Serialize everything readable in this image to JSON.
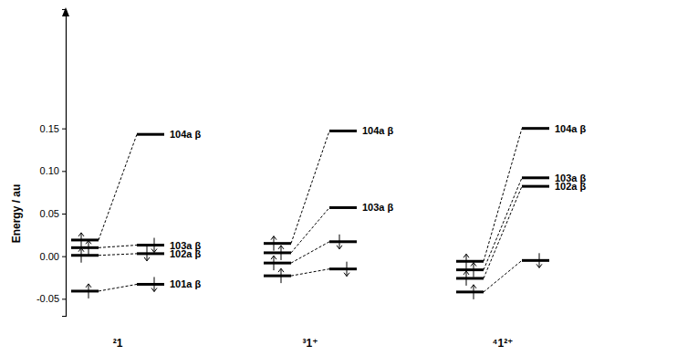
{
  "chart_data": {
    "type": "energy_level",
    "y_label": "Energy / au",
    "ylim": [
      -0.07,
      0.29
    ],
    "yticks": [
      -0.05,
      {
        "value": 0,
        "label": "0.00"
      },
      0.05,
      {
        "value": 0.1,
        "label": "0.10"
      },
      0.15
    ],
    "series": [
      {
        "name": "²1",
        "alpha": [
          0.019,
          0.01,
          0.001,
          -0.041
        ],
        "beta": [
          0.143,
          0.013,
          0.003,
          -0.033
        ],
        "beta_occupied": [
          false,
          true,
          true,
          true
        ],
        "beta_labels": [
          "104a β",
          "103a β",
          "102a β",
          "101a β"
        ]
      },
      {
        "name": "³1⁺",
        "alpha": [
          0.015,
          0.004,
          -0.008,
          -0.023
        ],
        "beta": [
          0.147,
          0.057,
          0.017,
          -0.015
        ],
        "beta_occupied": [
          false,
          false,
          true,
          true
        ],
        "beta_labels": [
          "104a β",
          "103a β",
          null,
          null
        ]
      },
      {
        "name": "⁴1²⁺",
        "alpha": [
          -0.006,
          -0.016,
          -0.026,
          -0.042
        ],
        "beta": [
          0.15,
          0.092,
          0.082,
          -0.005
        ],
        "beta_occupied": [
          false,
          false,
          false,
          true
        ],
        "beta_labels": [
          "104a β",
          "103a β",
          "102a β",
          null
        ]
      }
    ]
  }
}
